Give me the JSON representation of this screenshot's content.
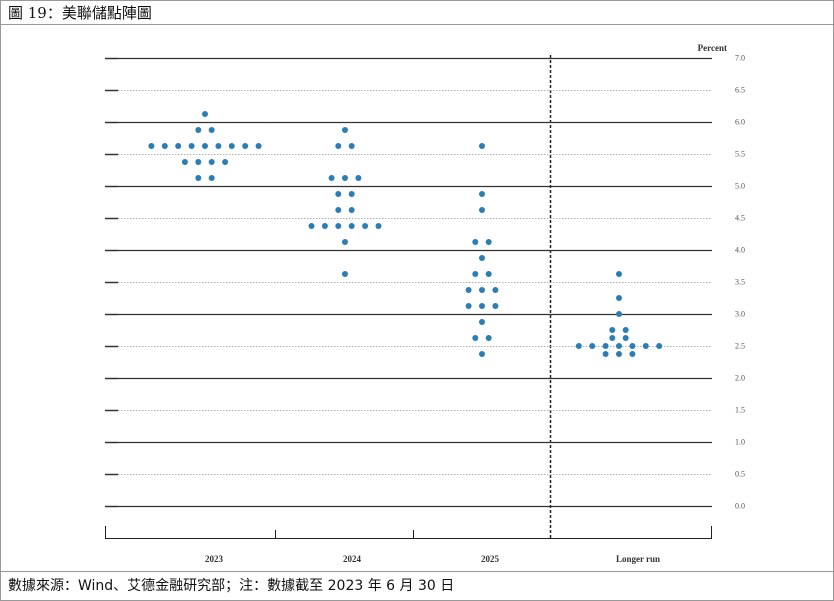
{
  "header": "圖 19：美聯儲點陣圖",
  "footer": "數據來源：Wind、艾德金融研究部；注：數據截至 2023 年 6 月 30 日",
  "chart_data": {
    "type": "dot",
    "y_label": "Percent",
    "categories": [
      "2023",
      "2024",
      "2025",
      "Longer run"
    ],
    "color": "#2a7db5",
    "dots": [
      [
        {
          "value": 6.125,
          "count": 1
        },
        {
          "value": 5.875,
          "count": 2
        },
        {
          "value": 5.625,
          "count": 9
        },
        {
          "value": 5.375,
          "count": 4
        },
        {
          "value": 5.125,
          "count": 2
        }
      ],
      [
        {
          "value": 5.875,
          "count": 1
        },
        {
          "value": 5.625,
          "count": 2
        },
        {
          "value": 5.125,
          "count": 3
        },
        {
          "value": 4.875,
          "count": 2
        },
        {
          "value": 4.625,
          "count": 2
        },
        {
          "value": 4.375,
          "count": 6
        },
        {
          "value": 4.125,
          "count": 1
        },
        {
          "value": 3.625,
          "count": 1
        }
      ],
      [
        {
          "value": 5.625,
          "count": 1
        },
        {
          "value": 4.875,
          "count": 1
        },
        {
          "value": 4.625,
          "count": 1
        },
        {
          "value": 4.125,
          "count": 2
        },
        {
          "value": 3.875,
          "count": 1
        },
        {
          "value": 3.625,
          "count": 2
        },
        {
          "value": 3.375,
          "count": 3
        },
        {
          "value": 3.125,
          "count": 3
        },
        {
          "value": 2.875,
          "count": 1
        },
        {
          "value": 2.625,
          "count": 2
        },
        {
          "value": 2.375,
          "count": 1
        }
      ],
      [
        {
          "value": 3.625,
          "count": 1
        },
        {
          "value": 3.25,
          "count": 1
        },
        {
          "value": 3.0,
          "count": 1
        },
        {
          "value": 2.75,
          "count": 2
        },
        {
          "value": 2.625,
          "count": 2
        },
        {
          "value": 2.5,
          "count": 7
        },
        {
          "value": 2.375,
          "count": 3
        }
      ]
    ],
    "ylim": [
      0,
      7
    ],
    "yticks": [
      {
        "value": 0,
        "label": "0.0"
      },
      0.5,
      {
        "value": 1,
        "label": "1.0"
      },
      1.5,
      {
        "value": 2,
        "label": "2.0"
      },
      2.5,
      {
        "value": 3,
        "label": "3.0"
      },
      3.5,
      {
        "value": 4,
        "label": "4.0"
      },
      4.5,
      {
        "value": 5,
        "label": "5.0"
      },
      5.5,
      {
        "value": 6,
        "label": "6.0"
      },
      6.5,
      {
        "value": 7,
        "label": "7.0"
      }
    ],
    "grid": true
  }
}
